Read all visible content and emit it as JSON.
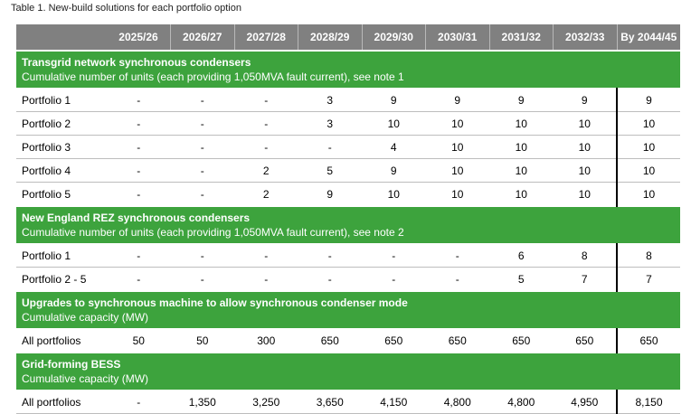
{
  "caption": "Table 1. New-build solutions for each portfolio option",
  "columns": [
    "2025/26",
    "2026/27",
    "2027/28",
    "2028/29",
    "2029/30",
    "2030/31",
    "2031/32",
    "2032/33",
    "By 2044/45"
  ],
  "sections": [
    {
      "title": "Transgrid network synchronous condensers",
      "subtitle": "Cumulative number of units (each providing 1,050MVA fault current), see note 1",
      "rows": [
        {
          "label": "Portfolio 1",
          "values": [
            "-",
            "-",
            "-",
            "3",
            "9",
            "9",
            "9",
            "9",
            "9"
          ]
        },
        {
          "label": "Portfolio 2",
          "values": [
            "-",
            "-",
            "-",
            "3",
            "10",
            "10",
            "10",
            "10",
            "10"
          ]
        },
        {
          "label": "Portfolio 3",
          "values": [
            "-",
            "-",
            "-",
            "-",
            "4",
            "10",
            "10",
            "10",
            "10"
          ]
        },
        {
          "label": "Portfolio 4",
          "values": [
            "-",
            "-",
            "2",
            "5",
            "9",
            "10",
            "10",
            "10",
            "10"
          ]
        },
        {
          "label": "Portfolio 5",
          "values": [
            "-",
            "-",
            "2",
            "9",
            "10",
            "10",
            "10",
            "10",
            "10"
          ]
        }
      ]
    },
    {
      "title": "New England REZ synchronous condensers",
      "subtitle": "Cumulative number of units (each providing 1,050MVA fault current), see note 2",
      "rows": [
        {
          "label": "Portfolio 1",
          "values": [
            "-",
            "-",
            "-",
            "-",
            "-",
            "-",
            "6",
            "8",
            "8"
          ]
        },
        {
          "label": "Portfolio 2 - 5",
          "values": [
            "-",
            "-",
            "-",
            "-",
            "-",
            "-",
            "5",
            "7",
            "7"
          ]
        }
      ]
    },
    {
      "title": "Upgrades to synchronous machine to allow synchronous condenser mode",
      "subtitle": "Cumulative capacity (MW)",
      "rows": [
        {
          "label": "All portfolios",
          "values": [
            "50",
            "50",
            "300",
            "650",
            "650",
            "650",
            "650",
            "650",
            "650"
          ]
        }
      ]
    },
    {
      "title": "Grid-forming BESS",
      "subtitle": "Cumulative capacity (MW)",
      "rows": [
        {
          "label": "All portfolios",
          "values": [
            "-",
            "1,350",
            "3,250",
            "3,650",
            "4,150",
            "4,800",
            "4,800",
            "4,950",
            "8,150"
          ]
        }
      ]
    }
  ]
}
